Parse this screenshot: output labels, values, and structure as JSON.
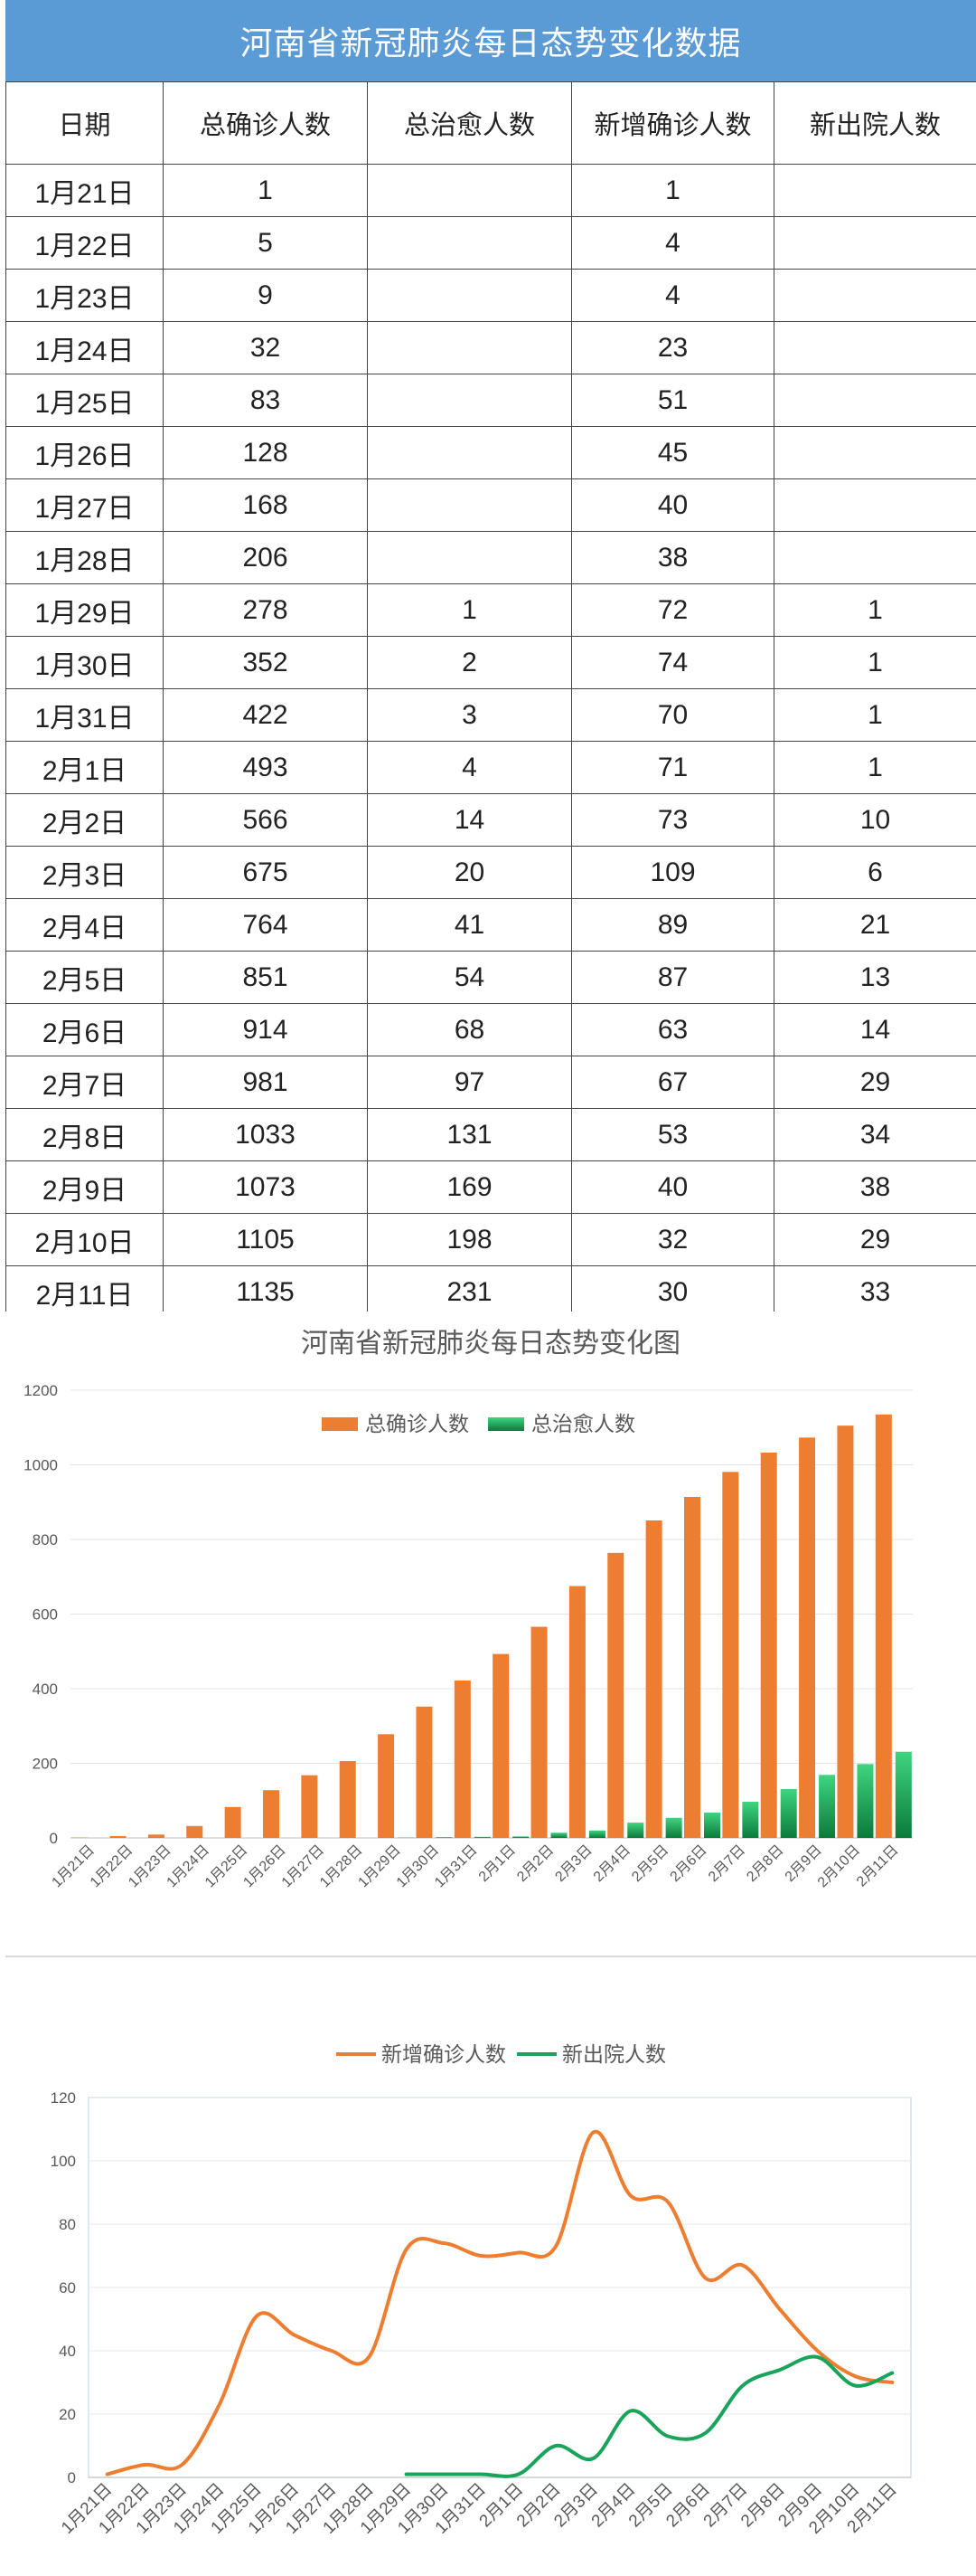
{
  "page_title": "河南省新冠肺炎每日态势变化数据",
  "table": {
    "headers": [
      "日期",
      "总确诊人数",
      "总治愈人数",
      "新增确诊人数",
      "新出院人数"
    ],
    "rows": [
      [
        "1月21日",
        "1",
        "",
        "1",
        ""
      ],
      [
        "1月22日",
        "5",
        "",
        "4",
        ""
      ],
      [
        "1月23日",
        "9",
        "",
        "4",
        ""
      ],
      [
        "1月24日",
        "32",
        "",
        "23",
        ""
      ],
      [
        "1月25日",
        "83",
        "",
        "51",
        ""
      ],
      [
        "1月26日",
        "128",
        "",
        "45",
        ""
      ],
      [
        "1月27日",
        "168",
        "",
        "40",
        ""
      ],
      [
        "1月28日",
        "206",
        "",
        "38",
        ""
      ],
      [
        "1月29日",
        "278",
        "1",
        "72",
        "1"
      ],
      [
        "1月30日",
        "352",
        "2",
        "74",
        "1"
      ],
      [
        "1月31日",
        "422",
        "3",
        "70",
        "1"
      ],
      [
        "2月1日",
        "493",
        "4",
        "71",
        "1"
      ],
      [
        "2月2日",
        "566",
        "14",
        "73",
        "10"
      ],
      [
        "2月3日",
        "675",
        "20",
        "109",
        "6"
      ],
      [
        "2月4日",
        "764",
        "41",
        "89",
        "21"
      ],
      [
        "2月5日",
        "851",
        "54",
        "87",
        "13"
      ],
      [
        "2月6日",
        "914",
        "68",
        "63",
        "14"
      ],
      [
        "2月7日",
        "981",
        "97",
        "67",
        "29"
      ],
      [
        "2月8日",
        "1033",
        "131",
        "53",
        "34"
      ],
      [
        "2月9日",
        "1073",
        "169",
        "40",
        "38"
      ],
      [
        "2月10日",
        "1105",
        "198",
        "32",
        "29"
      ],
      [
        "2月11日",
        "1135",
        "231",
        "30",
        "33"
      ]
    ]
  },
  "chart_data": [
    {
      "type": "bar",
      "title": "河南省新冠肺炎每日态势变化图",
      "categories": [
        "1月21日",
        "1月22日",
        "1月23日",
        "1月24日",
        "1月25日",
        "1月26日",
        "1月27日",
        "1月28日",
        "1月29日",
        "1月30日",
        "1月31日",
        "2月1日",
        "2月2日",
        "2月3日",
        "2月4日",
        "2月5日",
        "2月6日",
        "2月7日",
        "2月8日",
        "2月9日",
        "2月10日",
        "2月11日"
      ],
      "series": [
        {
          "name": "总确诊人数",
          "color": "#ed7d31",
          "values": [
            1,
            5,
            9,
            32,
            83,
            128,
            168,
            206,
            278,
            352,
            422,
            493,
            566,
            675,
            764,
            851,
            914,
            981,
            1033,
            1073,
            1105,
            1135
          ]
        },
        {
          "name": "总治愈人数",
          "color": "#1aa35b",
          "values": [
            0,
            0,
            0,
            0,
            0,
            0,
            0,
            0,
            1,
            2,
            3,
            4,
            14,
            20,
            41,
            54,
            68,
            97,
            131,
            169,
            198,
            231
          ]
        }
      ],
      "yticks": [
        0,
        200,
        400,
        600,
        800,
        1000,
        1200
      ],
      "ylim": [
        0,
        1200
      ],
      "grid": true,
      "legend": "top"
    },
    {
      "type": "line",
      "title": "",
      "categories": [
        "1月21日",
        "1月22日",
        "1月23日",
        "1月24日",
        "1月25日",
        "1月26日",
        "1月27日",
        "1月28日",
        "1月29日",
        "1月30日",
        "1月31日",
        "2月1日",
        "2月2日",
        "2月3日",
        "2月4日",
        "2月5日",
        "2月6日",
        "2月7日",
        "2月8日",
        "2月9日",
        "2月10日",
        "2月11日"
      ],
      "series": [
        {
          "name": "新增确诊人数",
          "color": "#ed7d31",
          "values": [
            1,
            4,
            4,
            23,
            51,
            45,
            40,
            38,
            72,
            74,
            70,
            71,
            73,
            109,
            89,
            87,
            63,
            67,
            53,
            40,
            32,
            30
          ]
        },
        {
          "name": "新出院人数",
          "color": "#1aa35b",
          "values": [
            null,
            null,
            null,
            null,
            null,
            null,
            null,
            null,
            1,
            1,
            1,
            1,
            10,
            6,
            21,
            13,
            14,
            29,
            34,
            38,
            29,
            33
          ]
        }
      ],
      "yticks": [
        0,
        20,
        40,
        60,
        80,
        100,
        120
      ],
      "ylim": [
        0,
        120
      ],
      "grid": true,
      "legend": "top",
      "smooth": true
    }
  ]
}
